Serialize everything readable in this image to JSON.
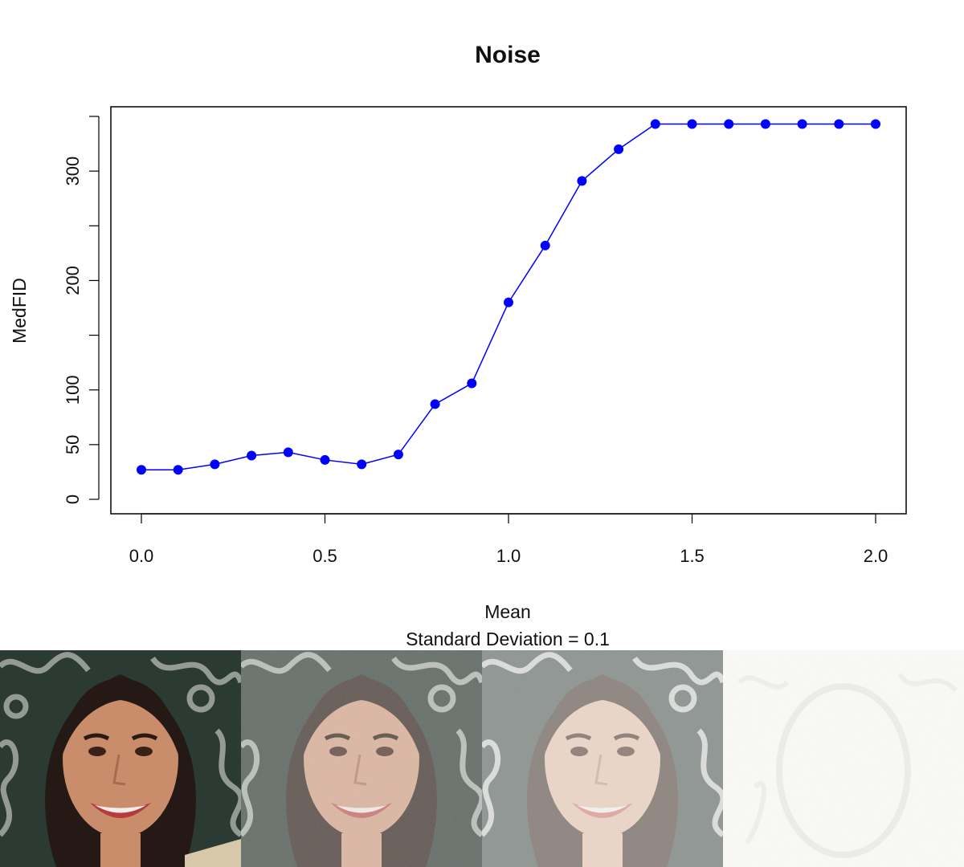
{
  "chart_data": {
    "type": "line",
    "title": "Noise",
    "xlabel": "Mean",
    "subtitle": "Standard Deviation = 0.1",
    "ylabel": "MedFID",
    "x": [
      0.0,
      0.1,
      0.2,
      0.3,
      0.4,
      0.5,
      0.6,
      0.7,
      0.8,
      0.9,
      1.0,
      1.1,
      1.2,
      1.3,
      1.4,
      1.5,
      1.6,
      1.7,
      1.8,
      1.9,
      2.0
    ],
    "series": [
      {
        "values": [
          27,
          27,
          32,
          40,
          43,
          36,
          32,
          41,
          87,
          106,
          180,
          232,
          291,
          320,
          343,
          343,
          343,
          343,
          343,
          343,
          343
        ]
      }
    ],
    "xlim": [
      0,
      2.0
    ],
    "ylim": [
      0,
      350
    ],
    "xticks": [
      "0.0",
      "0.5",
      "1.0",
      "1.5",
      "2.0"
    ],
    "yticks": [
      "0",
      "50",
      "100",
      "200",
      "300"
    ],
    "color": "#0000ff",
    "grid": false
  },
  "images": [
    {
      "name": "face-original"
    },
    {
      "name": "face-noise-mean-0.5"
    },
    {
      "name": "face-noise-mean-1.0"
    },
    {
      "name": "face-noise-mean-2.0"
    }
  ]
}
